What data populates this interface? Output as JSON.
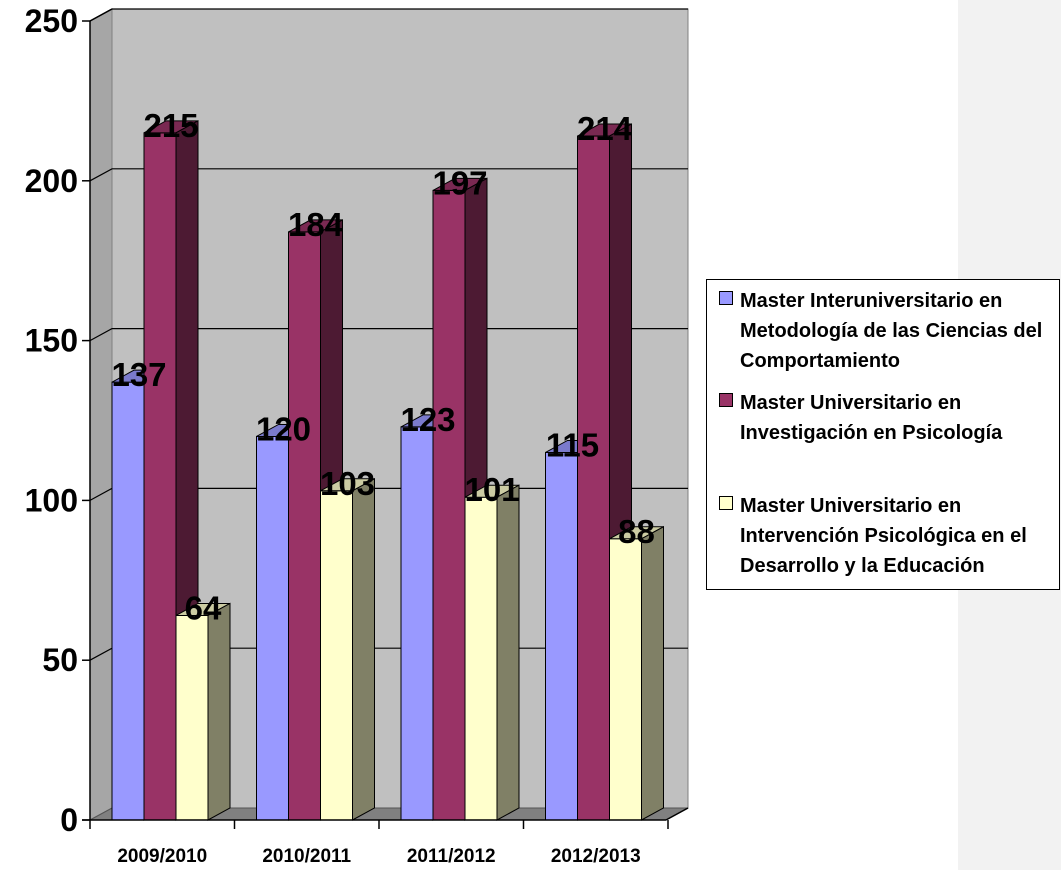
{
  "chart_data": {
    "type": "bar",
    "categories": [
      "2009/2010",
      "2010/2011",
      "2011/2012",
      "2012/2013"
    ],
    "series": [
      {
        "name": "Master Interuniversitario en Metodología de las Ciencias del Comportamiento",
        "values": [
          137,
          120,
          123,
          115
        ],
        "color": "#9999ff"
      },
      {
        "name": "Master Universitario en Investigación en Psicología",
        "values": [
          215,
          184,
          197,
          214
        ],
        "color": "#993366"
      },
      {
        "name": "Master Universitario en Intervención Psicológica en el Desarrollo y la Educación",
        "values": [
          64,
          103,
          101,
          88
        ],
        "color": "#ffffcc"
      }
    ],
    "ylim": [
      0,
      250
    ],
    "yticks": [
      "0",
      "50",
      "100",
      "150",
      "200",
      "250"
    ],
    "grid": true,
    "legend": "right",
    "three_d": true
  }
}
